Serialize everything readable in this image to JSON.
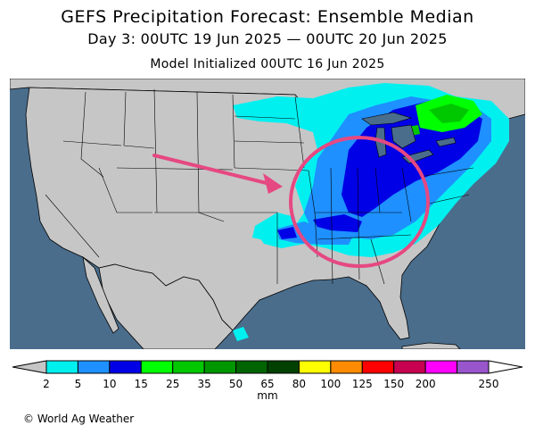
{
  "title": {
    "line1": "GEFS Precipitation Forecast: Ensemble Median",
    "line2": "Day 3: 00UTC 19 Jun 2025 — 00UTC 20 Jun 2025",
    "line3": "Model Initialized 00UTC 16 Jun 2025"
  },
  "map": {
    "credit": "© World Ag Weather",
    "ocean_color": "#4a6d8c",
    "land_color": "#c6c6c6",
    "border_color": "#000000",
    "annotation_color": "#e64882"
  },
  "legend": {
    "unit": "mm",
    "ticks": [
      "2",
      "5",
      "10",
      "15",
      "25",
      "35",
      "50",
      "65",
      "80",
      "100",
      "125",
      "150",
      "200",
      "250"
    ],
    "colors": [
      "#00f0f0",
      "#1e90ff",
      "#0000e6",
      "#00ff00",
      "#00c800",
      "#009600",
      "#006400",
      "#004000",
      "#ffff00",
      "#ff8c00",
      "#ff0000",
      "#c80050",
      "#ff00ff",
      "#9955cc"
    ]
  }
}
